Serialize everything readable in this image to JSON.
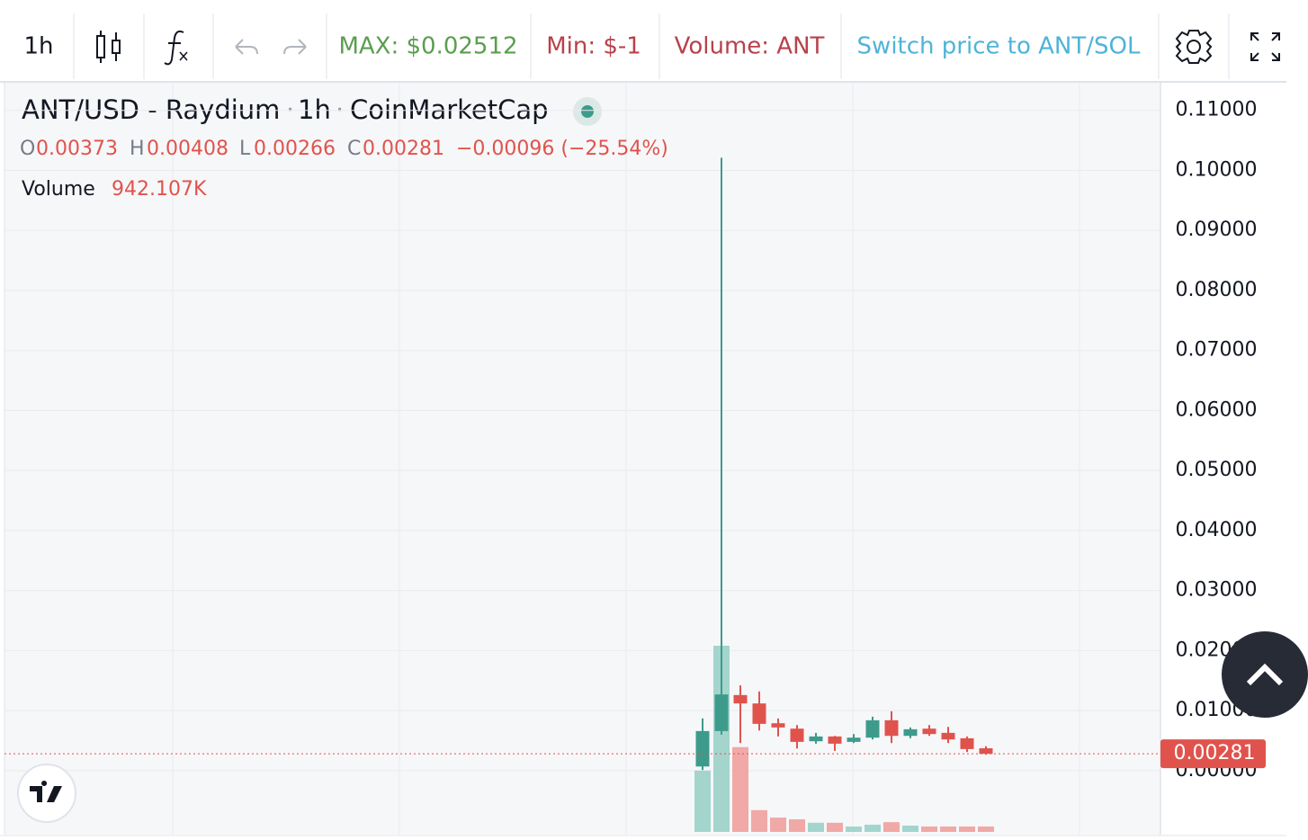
{
  "toolbar": {
    "interval": "1h",
    "max": "MAX: $0.02512",
    "min": "Min: $-1",
    "volume": "Volume: ANT",
    "switch": "Switch price to ANT/SOL"
  },
  "legend": {
    "symbol": "ANT/USD - Raydium",
    "interval": "1h",
    "source": "CoinMarketCap",
    "o_label": "O",
    "o": "0.00373",
    "h_label": "H",
    "h": "0.00408",
    "l_label": "L",
    "l": "0.00266",
    "c_label": "C",
    "c": "0.00281",
    "change": "−0.00096 (−25.54%)",
    "volume_label": "Volume",
    "volume": "942.107K"
  },
  "chart_data": {
    "type": "candlestick",
    "open": [
      0.0007,
      0.0066,
      0.0126,
      0.0112,
      0.0079,
      0.007,
      0.0049,
      0.0057,
      0.0048,
      0.0055,
      0.0084,
      0.0058,
      0.007,
      0.0063,
      0.0054,
      0.00373
    ],
    "high": [
      0.0087,
      0.1021,
      0.0142,
      0.0132,
      0.0087,
      0.0076,
      0.0063,
      0.0058,
      0.0061,
      0.009,
      0.0099,
      0.0072,
      0.0076,
      0.0073,
      0.0057,
      0.00408
    ],
    "low": [
      0.0001,
      0.006,
      0.0046,
      0.0067,
      0.0057,
      0.0037,
      0.0045,
      0.0033,
      0.0046,
      0.0052,
      0.0046,
      0.0054,
      0.0058,
      0.0046,
      0.0031,
      0.00266
    ],
    "close": [
      0.0066,
      0.0127,
      0.0112,
      0.0078,
      0.0072,
      0.0048,
      0.0057,
      0.0045,
      0.0055,
      0.0084,
      0.0058,
      0.0069,
      0.0061,
      0.0052,
      0.0036,
      0.00281
    ],
    "volume": [
      10700000,
      32500000,
      14800000,
      3800000,
      2500000,
      2200000,
      1600000,
      1600000,
      940000,
      1260000,
      1700000,
      1100000,
      942000,
      942000,
      942000,
      942107
    ],
    "up_color": "#3d9b8c",
    "down_color": "#e0534d",
    "up_volume_color": "#a3d5cd",
    "down_volume_color": "#f0a9a6",
    "ylim": [
      -0.0102,
      0.1146
    ],
    "yticks": [
      {
        "value": 0.11,
        "label": "0.11000"
      },
      {
        "value": 0.1,
        "label": "0.10000"
      },
      {
        "value": 0.09,
        "label": "0.09000"
      },
      {
        "value": 0.08,
        "label": "0.08000"
      },
      {
        "value": 0.07,
        "label": "0.07000"
      },
      {
        "value": 0.06,
        "label": "0.06000"
      },
      {
        "value": 0.05,
        "label": "0.05000"
      },
      {
        "value": 0.04,
        "label": "0.04000"
      },
      {
        "value": 0.03,
        "label": "0.03000"
      },
      {
        "value": 0.02,
        "label": "0.02000"
      },
      {
        "value": 0.01,
        "label": "0.01000"
      },
      {
        "value": 0,
        "label": "0.00000"
      }
    ],
    "last_price": {
      "value": 0.00281,
      "label": "0.00281"
    },
    "grid": true
  }
}
